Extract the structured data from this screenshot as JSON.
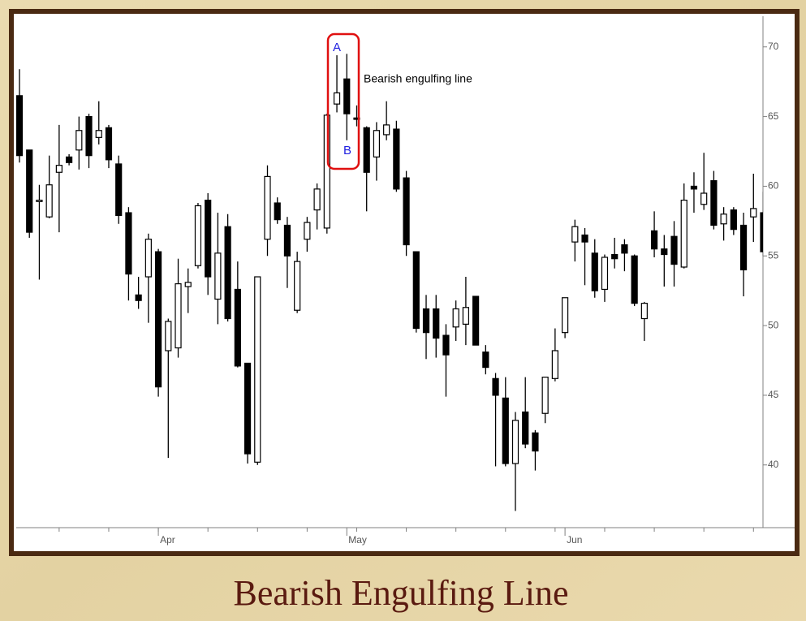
{
  "chart_data": {
    "type": "candlestick",
    "title": "Bearish Engulfing Line",
    "categories": [
      null,
      null,
      null,
      null,
      null,
      null,
      null,
      null,
      null,
      null,
      null,
      null,
      null,
      null,
      "Apr",
      null,
      null,
      null,
      null,
      null,
      null,
      null,
      null,
      null,
      null,
      null,
      null,
      null,
      null,
      null,
      null,
      null,
      null,
      "May",
      null,
      null,
      null,
      null,
      null,
      null,
      null,
      null,
      null,
      null,
      null,
      null,
      null,
      null,
      null,
      null,
      null,
      null,
      null,
      null,
      null,
      "Jun",
      null,
      null,
      null,
      null,
      null,
      null,
      null,
      null,
      null,
      null,
      null,
      null,
      null,
      null,
      null,
      null,
      null,
      null,
      null,
      null
    ],
    "open": [
      66.5,
      62.6,
      58.9,
      57.8,
      61.0,
      62.1,
      62.6,
      65.0,
      63.5,
      64.2,
      61.6,
      58.1,
      52.2,
      53.5,
      55.3,
      48.2,
      48.4,
      52.8,
      54.3,
      59.0,
      51.9,
      57.1,
      52.6,
      47.3,
      40.2,
      56.2,
      58.8,
      57.2,
      51.1,
      56.2,
      58.3,
      57.0,
      65.9,
      67.7,
      64.9,
      64.2,
      62.1,
      63.7,
      64.1,
      60.6,
      55.3,
      51.2,
      51.2,
      49.3,
      49.9,
      50.1,
      52.1,
      48.1,
      46.2,
      44.8,
      40.1,
      43.8,
      42.3,
      43.7,
      46.2,
      49.5,
      56.0,
      56.5,
      55.2,
      52.6,
      55.1,
      55.8,
      55.0,
      50.5,
      56.8,
      55.5,
      56.4,
      54.2,
      60.0,
      58.7,
      60.4,
      57.3,
      58.3,
      57.2,
      57.8,
      58.1
    ],
    "high": [
      68.4,
      62.6,
      60.1,
      62.2,
      64.4,
      62.3,
      65.0,
      65.2,
      66.1,
      64.4,
      62.2,
      58.5,
      53.5,
      56.6,
      55.5,
      50.5,
      54.8,
      54.1,
      58.8,
      59.5,
      58.1,
      58.0,
      54.6,
      47.3,
      53.5,
      61.5,
      59.2,
      57.8,
      55.3,
      57.8,
      60.2,
      65.2,
      69.4,
      69.5,
      65.8,
      64.3,
      64.6,
      66.1,
      64.7,
      61.1,
      55.3,
      52.2,
      52.2,
      50.1,
      51.8,
      53.5,
      52.1,
      48.6,
      46.6,
      46.3,
      43.8,
      46.3,
      42.5,
      46.3,
      49.8,
      52.0,
      57.6,
      57.0,
      56.2,
      55.1,
      56.3,
      56.2,
      55.1,
      51.7,
      58.2,
      56.5,
      57.5,
      60.2,
      61.0,
      62.4,
      61.1,
      58.5,
      58.5,
      58.1,
      60.9,
      59.6
    ],
    "low": [
      61.7,
      56.3,
      53.3,
      57.7,
      56.7,
      61.5,
      61.2,
      61.3,
      63.0,
      61.3,
      57.3,
      51.8,
      51.2,
      50.2,
      44.9,
      40.5,
      47.7,
      50.9,
      54.1,
      52.2,
      50.1,
      50.3,
      47.0,
      40.1,
      40.0,
      55.0,
      57.3,
      52.7,
      50.9,
      55.3,
      56.9,
      56.6,
      65.3,
      63.3,
      64.3,
      58.2,
      60.4,
      63.3,
      59.6,
      55.0,
      49.5,
      47.6,
      47.7,
      44.9,
      48.9,
      48.6,
      48.6,
      46.5,
      39.9,
      39.9,
      36.7,
      41.2,
      39.6,
      43.0,
      46.0,
      49.1,
      54.6,
      52.9,
      52.0,
      51.7,
      54.1,
      53.9,
      51.4,
      48.9,
      54.9,
      52.8,
      52.8,
      54.1,
      58.1,
      58.3,
      56.9,
      56.1,
      56.5,
      52.1,
      56.0,
      55.0
    ],
    "close": [
      62.2,
      56.7,
      59.0,
      60.1,
      61.5,
      61.7,
      64.0,
      62.2,
      64.0,
      61.9,
      57.9,
      53.7,
      51.8,
      56.2,
      45.6,
      50.3,
      53.0,
      53.1,
      58.6,
      53.5,
      55.2,
      50.5,
      47.1,
      40.8,
      53.5,
      60.7,
      57.6,
      55.0,
      54.6,
      57.4,
      59.8,
      65.1,
      66.7,
      65.2,
      64.8,
      61.0,
      64.0,
      64.4,
      59.8,
      55.8,
      49.8,
      49.5,
      49.1,
      47.9,
      51.2,
      51.3,
      48.6,
      47.0,
      45.0,
      40.1,
      43.2,
      41.5,
      41.0,
      46.3,
      48.2,
      52.0,
      57.1,
      56.0,
      52.5,
      54.9,
      54.8,
      55.2,
      51.6,
      51.6,
      55.5,
      55.1,
      54.4,
      59.0,
      59.8,
      59.5,
      57.2,
      58.0,
      56.9,
      54.0,
      58.4,
      55.3
    ],
    "up_color": "#ffffff",
    "down_color": "#000000",
    "ylim": [
      35.5,
      72.2
    ],
    "yticks": [
      40,
      45,
      50,
      55,
      60,
      65,
      70
    ],
    "annotations": [
      {
        "text": "A"
      },
      {
        "text": "B"
      },
      {
        "text": "Bearish engulfing line"
      }
    ]
  }
}
